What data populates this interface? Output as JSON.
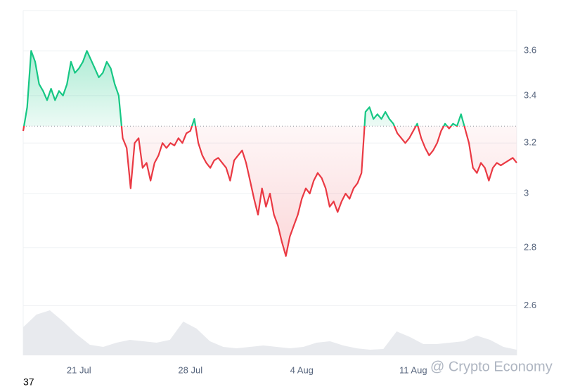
{
  "chart_data": {
    "type": "baseline-line",
    "values": [
      3.25,
      3.35,
      3.6,
      3.55,
      3.45,
      3.42,
      3.38,
      3.43,
      3.38,
      3.42,
      3.4,
      3.45,
      3.55,
      3.5,
      3.52,
      3.55,
      3.6,
      3.56,
      3.52,
      3.48,
      3.5,
      3.55,
      3.52,
      3.45,
      3.4,
      3.22,
      3.18,
      3.02,
      3.2,
      3.22,
      3.1,
      3.12,
      3.05,
      3.12,
      3.15,
      3.2,
      3.18,
      3.2,
      3.19,
      3.22,
      3.2,
      3.24,
      3.25,
      3.3,
      3.2,
      3.15,
      3.12,
      3.1,
      3.13,
      3.14,
      3.12,
      3.1,
      3.05,
      3.13,
      3.15,
      3.17,
      3.12,
      3.05,
      2.98,
      2.92,
      3.02,
      2.95,
      3.0,
      2.92,
      2.88,
      2.82,
      2.77,
      2.84,
      2.88,
      2.92,
      2.98,
      3.02,
      3.0,
      3.05,
      3.08,
      3.06,
      3.02,
      2.95,
      2.97,
      2.93,
      2.97,
      3.0,
      2.98,
      3.02,
      3.04,
      3.08,
      3.33,
      3.35,
      3.3,
      3.32,
      3.3,
      3.33,
      3.3,
      3.28,
      3.24,
      3.22,
      3.2,
      3.22,
      3.25,
      3.28,
      3.22,
      3.18,
      3.15,
      3.17,
      3.2,
      3.25,
      3.28,
      3.26,
      3.28,
      3.27,
      3.32,
      3.26,
      3.2,
      3.1,
      3.08,
      3.12,
      3.1,
      3.05,
      3.1,
      3.12,
      3.11,
      3.12,
      3.13,
      3.14,
      3.12
    ],
    "baseline": 3.27,
    "up_color": "#16c784",
    "down_color": "#ea3943",
    "log_scale": true,
    "ylim": [
      2.44,
      3.79
    ],
    "yticks": [
      2.6,
      2.8,
      3.0,
      3.2,
      3.4,
      3.6
    ],
    "xlim": [
      0,
      124
    ],
    "xticks": [
      {
        "value": 14,
        "label": "21 Jul"
      },
      {
        "value": 42,
        "label": "28 Jul"
      },
      {
        "value": 70,
        "label": "4 Aug"
      },
      {
        "value": 98,
        "label": "11 Aug"
      }
    ],
    "volume": {
      "values": [
        40,
        58,
        64,
        48,
        30,
        15,
        12,
        18,
        22,
        20,
        18,
        22,
        48,
        38,
        20,
        12,
        10,
        12,
        14,
        12,
        10,
        12,
        18,
        20,
        14,
        10,
        8,
        9,
        34,
        26,
        16,
        16,
        18,
        20,
        28,
        22,
        12,
        8
      ],
      "ylim": [
        0,
        70
      ],
      "color": "#e6e8ec"
    },
    "grid": true,
    "footer_number": "37",
    "watermark": "@ Crypto Economy"
  }
}
